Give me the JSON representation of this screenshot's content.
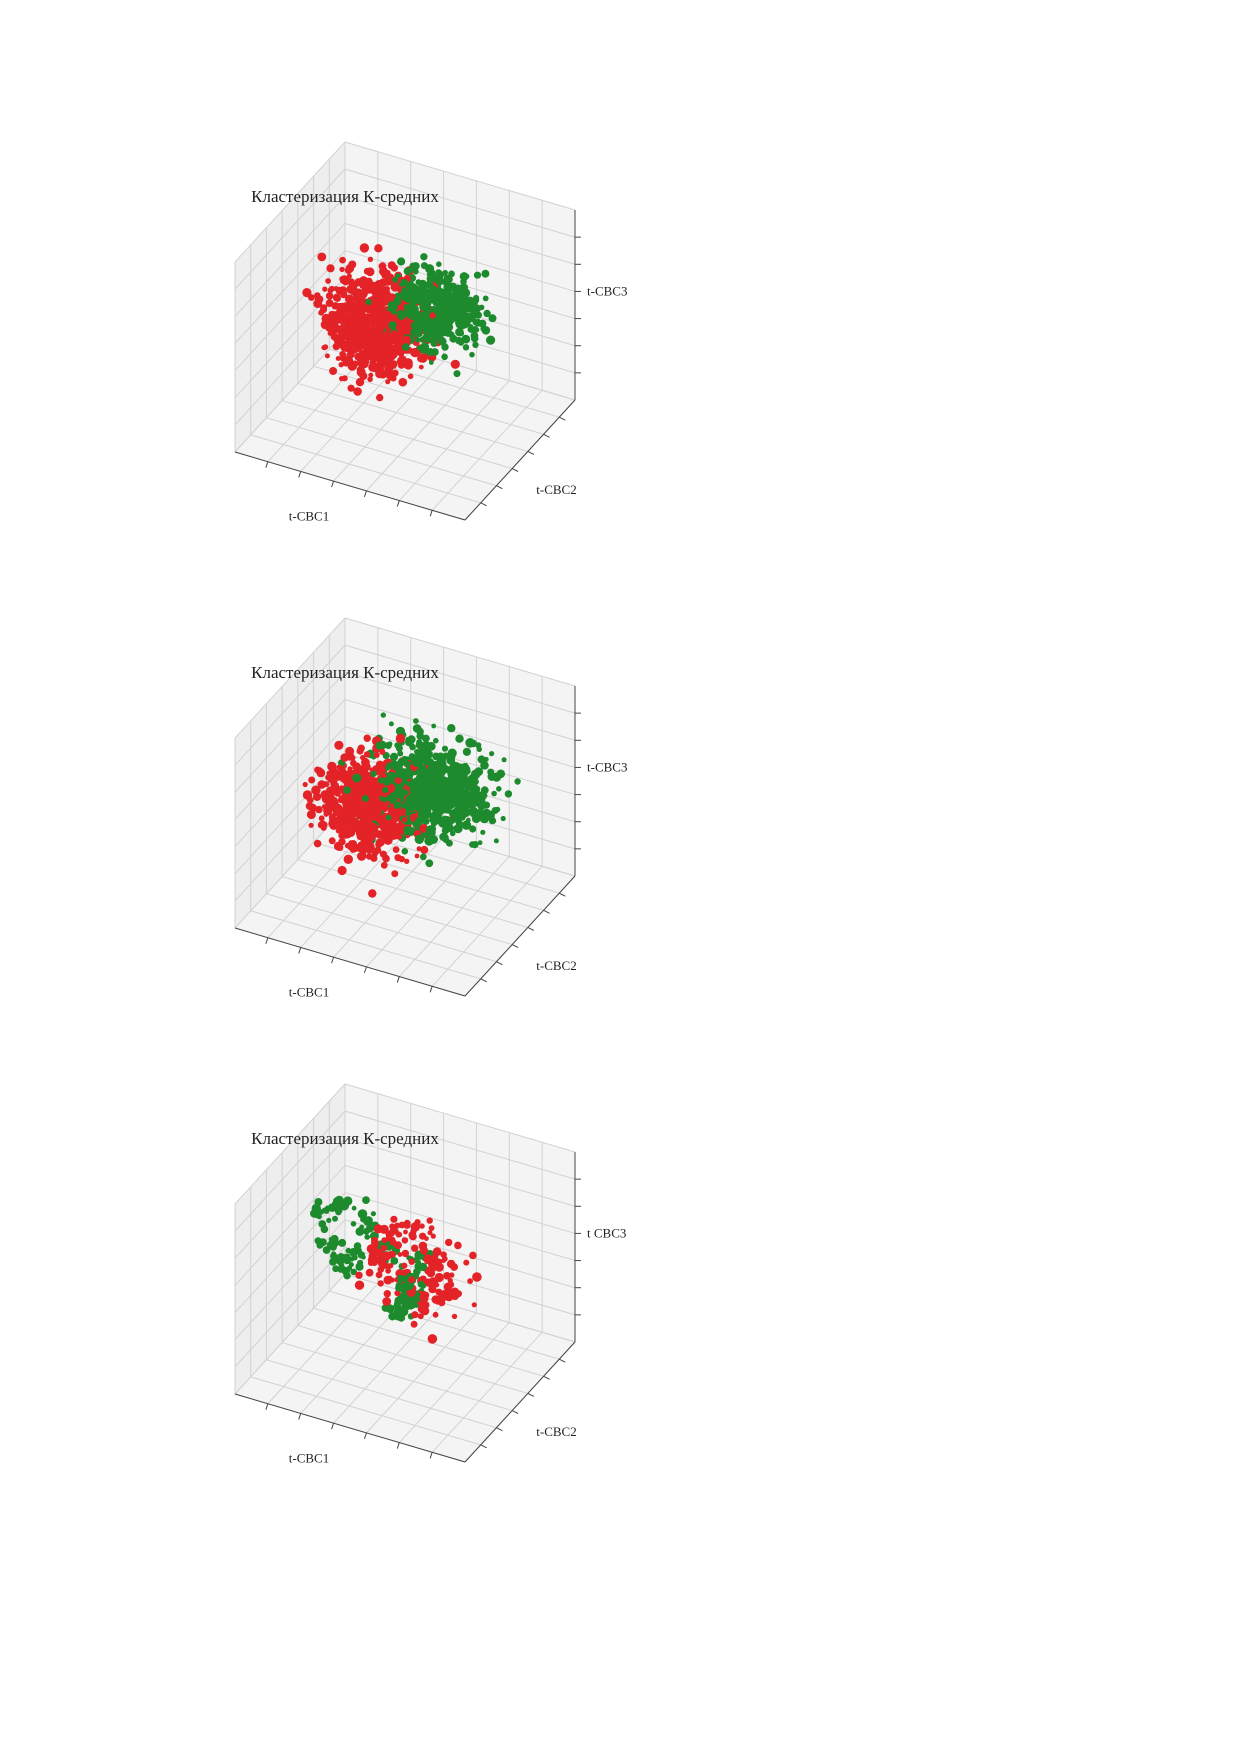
{
  "colors": {
    "cluster_red": "#e32327",
    "cluster_green": "#1e8a2e",
    "grid": "#d2d2d2",
    "pane": "#f4f4f4"
  },
  "chart_data": [
    {
      "type": "scatter",
      "projection": "3d",
      "title": "Кластеризация К-средних",
      "xlabel": "t-CBC1",
      "ylabel": "t-CBC2",
      "zlabel": "t-CBC3",
      "grid": true,
      "legend": "none",
      "series": [
        {
          "color": "#e32327",
          "shape": "compact blob",
          "center": [
            0.35,
            0.55,
            0.45
          ],
          "spread": [
            0.18,
            0.15,
            0.22
          ],
          "count": 700,
          "seed": 11
        },
        {
          "color": "#1e8a2e",
          "shape": "sparse band",
          "center": [
            0.62,
            0.55,
            0.62
          ],
          "spread": [
            0.17,
            0.12,
            0.17
          ],
          "count": 380,
          "seed": 12
        }
      ]
    },
    {
      "type": "scatter",
      "projection": "3d",
      "title": "Кластеризация К-средних",
      "xlabel": "t-CBC1",
      "ylabel": "t-CBC2",
      "zlabel": "t-CBC3",
      "grid": true,
      "legend": "none",
      "series": [
        {
          "color": "#e32327",
          "shape": "compact blob",
          "center": [
            0.35,
            0.5,
            0.45
          ],
          "spread": [
            0.17,
            0.15,
            0.2
          ],
          "count": 650,
          "seed": 21
        },
        {
          "color": "#1e8a2e",
          "shape": "dense blob",
          "center": [
            0.6,
            0.55,
            0.6
          ],
          "spread": [
            0.2,
            0.15,
            0.18
          ],
          "count": 700,
          "seed": 22
        }
      ]
    },
    {
      "type": "scatter",
      "projection": "3d",
      "title": "Кластеризация К-средних",
      "xlabel": "t-CBC1",
      "ylabel": "t-CBC2",
      "zlabel": "t CBC3",
      "grid": true,
      "legend": "none",
      "series": [
        {
          "color": "#e32327",
          "shape": "ring + scattered",
          "center": [
            0.55,
            0.5,
            0.55
          ],
          "spread": [
            0.18,
            0.18,
            0.2
          ],
          "count": 170,
          "seed": 31
        },
        {
          "color": "#1e8a2e",
          "shape": "small clusters",
          "center": [
            0.35,
            0.5,
            0.5
          ],
          "spread": [
            0.2,
            0.15,
            0.2
          ],
          "count": 190,
          "seed": 32
        }
      ]
    }
  ]
}
